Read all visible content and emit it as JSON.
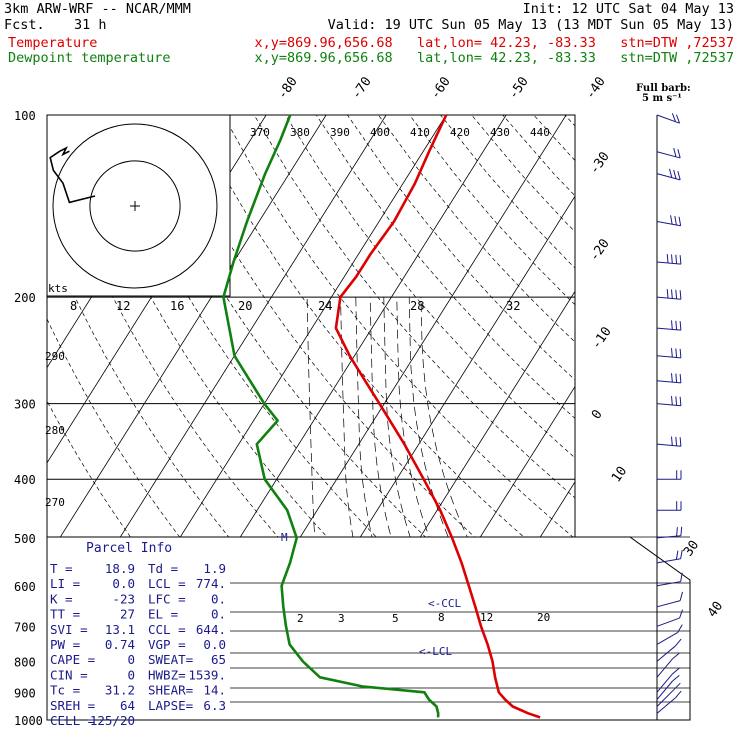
{
  "header": {
    "model": "3km ARW-WRF -- NCAR/MMM",
    "init": "Init: 12 UTC Sat 04 May 13",
    "fcst_label": "Fcst.",
    "fcst_value": "31 h",
    "valid": "Valid: 19 UTC Sun 05 May 13 (13 MDT Sun 05 May 13)",
    "temp_label": "Temperature",
    "dew_label": "Dewpoint temperature",
    "location": "x,y=869.96,656.68   lat,lon= 42.23, -83.33   stn=DTW ,72537",
    "colors": {
      "temp": "#dd0000",
      "dew": "#108010",
      "parcel": "#1a1a8c",
      "sheet": "#000000"
    }
  },
  "barb_legend": {
    "line1": "Full barb:",
    "line2": "5 m s⁻¹"
  },
  "hodograph": {
    "units_label": "kts"
  },
  "parcel_info": {
    "title": "Parcel Info",
    "rows": [
      [
        "T  =",
        "18.9",
        "Td =",
        "1.9"
      ],
      [
        "LI =",
        "0.0",
        "LCL =",
        "774."
      ],
      [
        "K  =",
        "-23",
        "LFC =",
        "0."
      ],
      [
        "TT =",
        "27",
        "EL  =",
        "0."
      ],
      [
        "SVI =",
        "13.1",
        "CCL =",
        "644."
      ],
      [
        "PW  =",
        "0.74",
        "VGP =",
        "0.0"
      ],
      [
        "CAPE =",
        "0",
        "SWEAT=",
        "65"
      ],
      [
        "CIN  =",
        "0",
        "HWBZ=",
        "1539."
      ],
      [
        "Tc =",
        "31.2",
        "SHEAR=",
        "14."
      ],
      [
        "SREH =",
        "64",
        "LAPSE=",
        "6.3"
      ],
      [
        "CELL =",
        "125/20",
        "",
        ""
      ]
    ]
  },
  "chart_data": {
    "type": "line",
    "yscale": "log-pressure",
    "ylim": [
      1000,
      100
    ],
    "pressure_ticks": [
      "100",
      "200",
      "300",
      "400",
      "500",
      "600",
      "700",
      "800",
      "900",
      "1000"
    ],
    "isotherm_labels": [
      "-80",
      "-70",
      "-60",
      "-50",
      "-40",
      "-30",
      "-20",
      "-10",
      "0",
      "10",
      "30",
      "40"
    ],
    "theta_labels": [
      "370",
      "380",
      "390",
      "400",
      "410",
      "420",
      "430",
      "440"
    ],
    "theta_low_labels": [
      "290",
      "280",
      "270"
    ],
    "hodo_speed_labels": [
      "8",
      "12",
      "16",
      "20",
      "24",
      "28",
      "32"
    ],
    "mixing_ratio_labels": [
      "2",
      "3",
      "5",
      "8",
      "12",
      "20"
    ],
    "annotations": [
      "<-CCL",
      "<-LCL"
    ],
    "series": [
      {
        "name": "Temperature",
        "points": [
          [
            990,
            18.9
          ],
          [
            975,
            16.5
          ],
          [
            950,
            13.2
          ],
          [
            925,
            11.2
          ],
          [
            900,
            9.4
          ],
          [
            850,
            7.2
          ],
          [
            800,
            5.1
          ],
          [
            750,
            2.5
          ],
          [
            700,
            -0.5
          ],
          [
            650,
            -3.5
          ],
          [
            600,
            -6.8
          ],
          [
            550,
            -10.4
          ],
          [
            500,
            -14.6
          ],
          [
            450,
            -19.5
          ],
          [
            400,
            -25.5
          ],
          [
            350,
            -32.4
          ],
          [
            300,
            -40.8
          ],
          [
            275,
            -45.6
          ],
          [
            250,
            -50.8
          ],
          [
            225,
            -56.0
          ],
          [
            200,
            -58.5
          ],
          [
            185,
            -58.0
          ],
          [
            170,
            -58.0
          ],
          [
            150,
            -57.5
          ],
          [
            130,
            -58.0
          ],
          [
            115,
            -59.0
          ],
          [
            100,
            -60.0
          ]
        ]
      },
      {
        "name": "Dewpoint temperature",
        "points": [
          [
            990,
            1.9
          ],
          [
            975,
            1.5
          ],
          [
            950,
            0.5
          ],
          [
            925,
            -1.5
          ],
          [
            900,
            -3.0
          ],
          [
            880,
            -14.0
          ],
          [
            850,
            -22.0
          ],
          [
            800,
            -26.5
          ],
          [
            750,
            -30.5
          ],
          [
            700,
            -33.0
          ],
          [
            650,
            -35.5
          ],
          [
            600,
            -38.0
          ],
          [
            550,
            -39.0
          ],
          [
            500,
            -40.5
          ],
          [
            450,
            -45.0
          ],
          [
            400,
            -52.0
          ],
          [
            350,
            -57.0
          ],
          [
            320,
            -56.0
          ],
          [
            300,
            -60.0
          ],
          [
            250,
            -70.0
          ],
          [
            200,
            -78.0
          ],
          [
            175,
            -80.0
          ],
          [
            150,
            -82.0
          ],
          [
            125,
            -84.0
          ],
          [
            110,
            -85.0
          ],
          [
            100,
            -86.0
          ]
        ]
      }
    ],
    "hodograph": {
      "max_speed_kts": 30,
      "ring_radius_kts": 10,
      "wind_kts": [
        [
          0,
          0
        ],
        [
          -8,
          -2
        ],
        [
          -10,
          4
        ],
        [
          -13,
          8
        ],
        [
          -14,
          12
        ],
        [
          -11,
          14
        ],
        [
          -9,
          15
        ],
        [
          -10,
          13
        ],
        [
          -8,
          14
        ]
      ]
    },
    "wind_barbs": [
      {
        "p": 100,
        "dir": 250,
        "spd": 20
      },
      {
        "p": 115,
        "dir": 255,
        "spd": 22
      },
      {
        "p": 125,
        "dir": 255,
        "spd": 25
      },
      {
        "p": 150,
        "dir": 260,
        "spd": 30
      },
      {
        "p": 175,
        "dir": 265,
        "spd": 35
      },
      {
        "p": 200,
        "dir": 265,
        "spd": 35
      },
      {
        "p": 225,
        "dir": 265,
        "spd": 32
      },
      {
        "p": 250,
        "dir": 265,
        "spd": 30
      },
      {
        "p": 275,
        "dir": 265,
        "spd": 30
      },
      {
        "p": 300,
        "dir": 265,
        "spd": 28
      },
      {
        "p": 350,
        "dir": 265,
        "spd": 25
      },
      {
        "p": 400,
        "dir": 270,
        "spd": 22
      },
      {
        "p": 450,
        "dir": 270,
        "spd": 20
      },
      {
        "p": 500,
        "dir": 275,
        "spd": 18
      },
      {
        "p": 550,
        "dir": 280,
        "spd": 15
      },
      {
        "p": 600,
        "dir": 280,
        "spd": 12
      },
      {
        "p": 650,
        "dir": 285,
        "spd": 10
      },
      {
        "p": 700,
        "dir": 290,
        "spd": 10
      },
      {
        "p": 750,
        "dir": 300,
        "spd": 8
      },
      {
        "p": 800,
        "dir": 310,
        "spd": 8
      },
      {
        "p": 850,
        "dir": 320,
        "spd": 8
      },
      {
        "p": 900,
        "dir": 320,
        "spd": 9
      },
      {
        "p": 925,
        "dir": 320,
        "spd": 8
      },
      {
        "p": 950,
        "dir": 315,
        "spd": 7
      },
      {
        "p": 975,
        "dir": 310,
        "spd": 6
      }
    ]
  }
}
